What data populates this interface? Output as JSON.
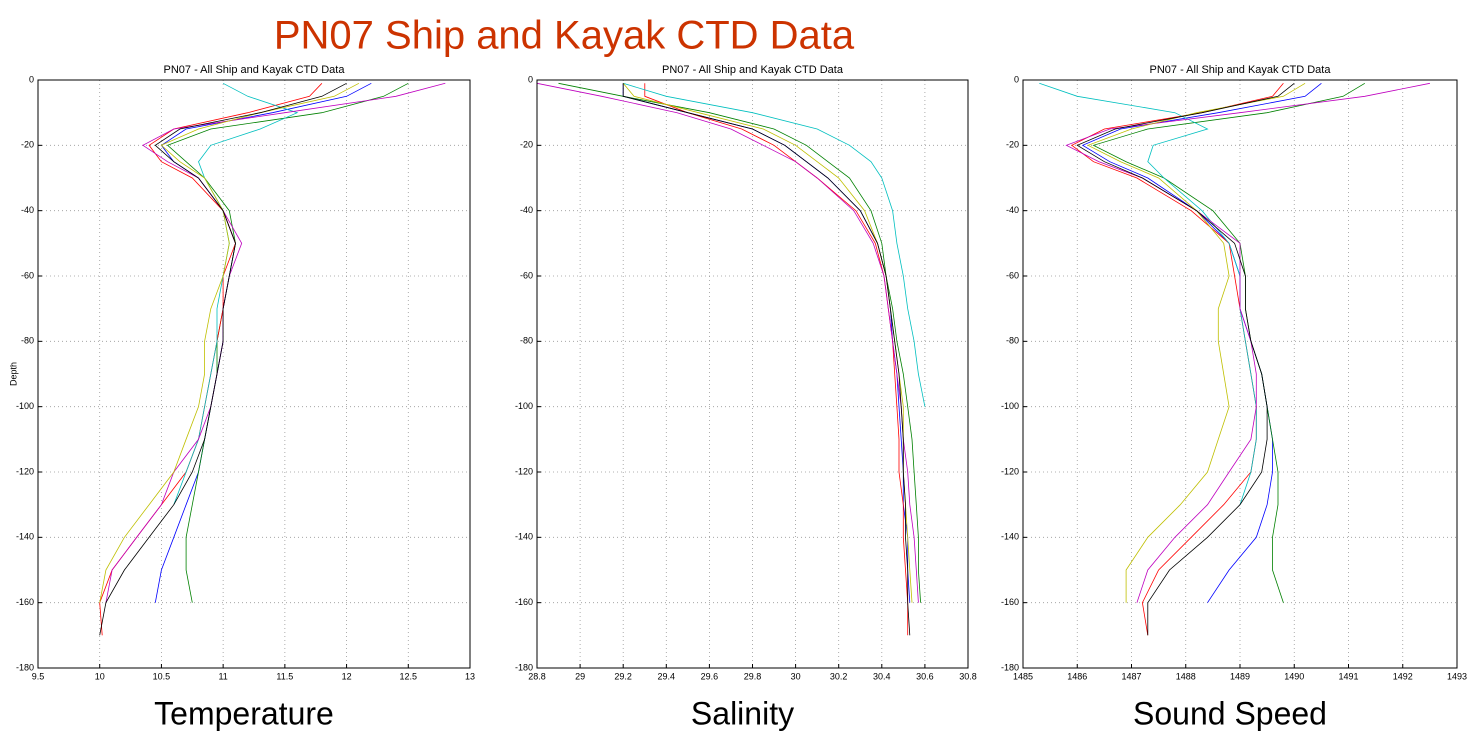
{
  "title": "PN07 Ship and Kayak CTD Data",
  "chart_data": [
    {
      "type": "line",
      "title": "PN07 - All Ship and Kayak CTD Data",
      "ylabel": "Depth",
      "xlabel": "Temperature",
      "xlim": [
        9.5,
        13
      ],
      "xticks": [
        9.5,
        10,
        10.5,
        11,
        11.5,
        12,
        12.5,
        13
      ],
      "ylim": [
        -180,
        0
      ],
      "yticks": [
        0,
        -20,
        -40,
        -60,
        -80,
        -100,
        -120,
        -140,
        -160,
        -180
      ],
      "grid": true,
      "y": [
        -1,
        -5,
        -10,
        -15,
        -20,
        -25,
        -30,
        -40,
        -50,
        -60,
        -70,
        -80,
        -90,
        -100,
        -110,
        -120,
        -130,
        -140,
        -150,
        -160,
        -170
      ],
      "series": [
        {
          "color": "#0000ff",
          "x": [
            12.2,
            12.0,
            11.4,
            10.7,
            10.5,
            10.6,
            10.8,
            11.0,
            11.1,
            11.05,
            11.0,
            11.0,
            10.95,
            10.9,
            10.85,
            10.8,
            10.7,
            10.6,
            10.5,
            10.45,
            null
          ]
        },
        {
          "color": "#008000",
          "x": [
            12.5,
            12.3,
            11.8,
            10.9,
            10.55,
            10.7,
            10.85,
            11.05,
            11.1,
            11.05,
            11.0,
            10.95,
            10.95,
            10.9,
            10.85,
            10.8,
            10.75,
            10.7,
            10.7,
            10.75,
            null
          ]
        },
        {
          "color": "#ff0000",
          "x": [
            11.8,
            11.7,
            11.2,
            10.6,
            10.4,
            10.5,
            10.75,
            11.0,
            11.1,
            11.0,
            11.0,
            10.95,
            10.9,
            10.85,
            10.8,
            10.7,
            10.5,
            10.3,
            10.1,
            10.0,
            10.02
          ]
        },
        {
          "color": "#00bfbf",
          "x": [
            11.0,
            11.2,
            11.6,
            11.3,
            10.9,
            10.8,
            10.85,
            11.0,
            11.05,
            11.0,
            10.95,
            10.95,
            10.9,
            10.85,
            10.8,
            10.7,
            10.6,
            null,
            null,
            null,
            null
          ]
        },
        {
          "color": "#bf00bf",
          "x": [
            12.8,
            12.4,
            11.5,
            10.6,
            10.35,
            10.55,
            10.8,
            11.0,
            11.15,
            11.05,
            11.0,
            11.0,
            10.95,
            10.9,
            10.8,
            10.6,
            10.5,
            10.3,
            10.1,
            10.05,
            null
          ]
        },
        {
          "color": "#bfbf00",
          "x": [
            12.1,
            11.9,
            11.3,
            10.8,
            10.5,
            10.65,
            10.85,
            11.0,
            11.05,
            11.0,
            10.9,
            10.85,
            10.85,
            10.8,
            10.7,
            10.6,
            10.4,
            10.2,
            10.05,
            10.0,
            null
          ]
        },
        {
          "color": "#000000",
          "x": [
            12.0,
            11.8,
            11.3,
            10.65,
            10.45,
            10.6,
            10.8,
            11.0,
            11.1,
            11.05,
            11.0,
            11.0,
            10.95,
            10.9,
            10.85,
            10.75,
            10.6,
            10.4,
            10.2,
            10.05,
            10.0
          ]
        }
      ]
    },
    {
      "type": "line",
      "title": "PN07 - All Ship and Kayak CTD Data",
      "xlabel": "Salinity",
      "xlim": [
        28.8,
        30.8
      ],
      "xticks": [
        28.8,
        29,
        29.2,
        29.4,
        29.6,
        29.8,
        30,
        30.2,
        30.4,
        30.6,
        30.8
      ],
      "ylim": [
        -180,
        0
      ],
      "yticks": [
        0,
        -20,
        -40,
        -60,
        -80,
        -100,
        -120,
        -140,
        -160,
        -180
      ],
      "grid": true,
      "y": [
        -1,
        -5,
        -10,
        -15,
        -20,
        -25,
        -30,
        -40,
        -50,
        -60,
        -70,
        -80,
        -90,
        -100,
        -110,
        -120,
        -130,
        -140,
        -150,
        -160,
        -170
      ],
      "series": [
        {
          "color": "#0000ff",
          "x": [
            29.2,
            29.2,
            29.5,
            29.8,
            29.95,
            30.05,
            30.15,
            30.3,
            30.38,
            30.42,
            30.44,
            30.45,
            30.47,
            30.48,
            30.49,
            30.5,
            30.5,
            30.52,
            30.52,
            30.53,
            null
          ]
        },
        {
          "color": "#008000",
          "x": [
            28.9,
            29.2,
            29.6,
            29.9,
            30.05,
            30.15,
            30.25,
            30.35,
            30.4,
            30.42,
            30.45,
            30.47,
            30.5,
            30.52,
            30.54,
            30.55,
            30.56,
            30.57,
            30.57,
            30.58,
            null
          ]
        },
        {
          "color": "#ff0000",
          "x": [
            29.3,
            29.3,
            29.5,
            29.75,
            29.9,
            30.0,
            30.1,
            30.28,
            30.37,
            30.41,
            30.43,
            30.45,
            30.46,
            30.47,
            30.48,
            30.48,
            30.5,
            30.5,
            30.51,
            30.52,
            30.52
          ]
        },
        {
          "color": "#00bfbf",
          "x": [
            29.2,
            29.4,
            29.8,
            30.1,
            30.25,
            30.35,
            30.4,
            30.45,
            30.47,
            30.5,
            30.52,
            30.55,
            30.57,
            30.6,
            null,
            null,
            null,
            null,
            null,
            null,
            null
          ]
        },
        {
          "color": "#bf00bf",
          "x": [
            28.8,
            29.1,
            29.45,
            29.7,
            29.85,
            30.0,
            30.1,
            30.27,
            30.36,
            30.41,
            30.43,
            30.45,
            30.47,
            30.49,
            30.5,
            30.52,
            30.53,
            30.55,
            30.56,
            30.57,
            null
          ]
        },
        {
          "color": "#bfbf00",
          "x": [
            29.2,
            29.25,
            29.55,
            29.85,
            30.0,
            30.1,
            30.2,
            30.32,
            30.38,
            30.42,
            30.44,
            30.46,
            30.48,
            30.5,
            30.5,
            30.5,
            30.51,
            30.52,
            30.53,
            30.54,
            null
          ]
        },
        {
          "color": "#000000",
          "x": [
            29.2,
            29.2,
            29.5,
            29.8,
            29.95,
            30.05,
            30.15,
            30.3,
            30.38,
            30.42,
            30.44,
            30.46,
            30.48,
            30.49,
            30.5,
            30.5,
            30.51,
            30.51,
            30.52,
            30.52,
            30.53
          ]
        }
      ]
    },
    {
      "type": "line",
      "title": "PN07 - All Ship and Kayak CTD Data",
      "xlabel": "Sound Speed",
      "xlim": [
        1485,
        1493
      ],
      "xticks": [
        1485,
        1486,
        1487,
        1488,
        1489,
        1490,
        1491,
        1492,
        1493
      ],
      "ylim": [
        -180,
        0
      ],
      "yticks": [
        0,
        -20,
        -40,
        -60,
        -80,
        -100,
        -120,
        -140,
        -160,
        -180
      ],
      "grid": true,
      "y": [
        -1,
        -5,
        -10,
        -15,
        -20,
        -25,
        -30,
        -40,
        -50,
        -60,
        -70,
        -80,
        -90,
        -100,
        -110,
        -120,
        -130,
        -140,
        -150,
        -160,
        -170
      ],
      "series": [
        {
          "color": "#0000ff",
          "x": [
            1490.5,
            1490.2,
            1488.6,
            1486.8,
            1486.1,
            1486.6,
            1487.3,
            1488.2,
            1488.8,
            1489.0,
            1489.0,
            1489.2,
            1489.4,
            1489.5,
            1489.6,
            1489.6,
            1489.5,
            1489.3,
            1488.8,
            1488.4,
            null
          ]
        },
        {
          "color": "#008000",
          "x": [
            1491.3,
            1490.9,
            1489.5,
            1487.3,
            1486.3,
            1486.9,
            1487.6,
            1488.5,
            1489.0,
            1489.1,
            1489.1,
            1489.2,
            1489.4,
            1489.5,
            1489.6,
            1489.7,
            1489.7,
            1489.6,
            1489.6,
            1489.8,
            null
          ]
        },
        {
          "color": "#ff0000",
          "x": [
            1489.8,
            1489.6,
            1488.3,
            1486.5,
            1485.9,
            1486.3,
            1487.1,
            1488.1,
            1488.8,
            1488.9,
            1489.0,
            1489.1,
            1489.2,
            1489.3,
            1489.3,
            1489.2,
            1488.7,
            1488.1,
            1487.5,
            1487.2,
            1487.3
          ]
        },
        {
          "color": "#00bfbf",
          "x": [
            1485.3,
            1486.0,
            1487.8,
            1488.4,
            1487.4,
            1487.3,
            1487.6,
            1488.3,
            1488.8,
            1489.0,
            1489.0,
            1489.1,
            1489.2,
            1489.3,
            1489.3,
            1489.2,
            1489.0,
            null,
            null,
            null,
            null
          ]
        },
        {
          "color": "#bf00bf",
          "x": [
            1492.5,
            1491.3,
            1489.0,
            1486.6,
            1485.8,
            1486.4,
            1487.2,
            1488.2,
            1489.0,
            1489.0,
            1489.0,
            1489.2,
            1489.3,
            1489.3,
            1489.2,
            1488.8,
            1488.4,
            1487.8,
            1487.3,
            1487.1,
            null
          ]
        },
        {
          "color": "#bfbf00",
          "x": [
            1490.2,
            1489.8,
            1488.2,
            1487.0,
            1486.2,
            1486.8,
            1487.5,
            1488.2,
            1488.7,
            1488.8,
            1488.6,
            1488.6,
            1488.7,
            1488.8,
            1488.6,
            1488.4,
            1487.9,
            1487.3,
            1486.9,
            1486.9,
            null
          ]
        },
        {
          "color": "#000000",
          "x": [
            1490.0,
            1489.7,
            1488.3,
            1486.7,
            1486.0,
            1486.5,
            1487.2,
            1488.2,
            1488.9,
            1489.1,
            1489.1,
            1489.2,
            1489.4,
            1489.5,
            1489.5,
            1489.4,
            1489.0,
            1488.4,
            1487.7,
            1487.3,
            1487.3
          ]
        }
      ]
    }
  ]
}
